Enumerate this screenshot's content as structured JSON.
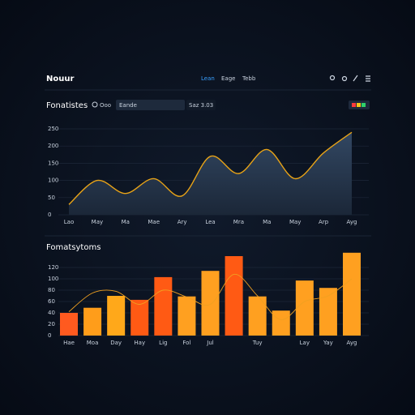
{
  "header": {
    "title": "Nouur",
    "nav": [
      "Lean",
      "Eage",
      "Tebb"
    ]
  },
  "toolbar": {
    "title": "Fonatistes",
    "search_label": "Ooo",
    "input": "Eande",
    "info": "Saz 3.03"
  },
  "chart_data": [
    {
      "type": "area",
      "color": "#e8a317",
      "categories": [
        "Lao",
        "May",
        "Ma",
        "Mae",
        "Ary",
        "Lea",
        "Mra",
        "Ma",
        "May",
        "Arp",
        "Ayg"
      ],
      "values": [
        30,
        100,
        62,
        105,
        55,
        170,
        120,
        190,
        105,
        180,
        240
      ],
      "ylim": [
        0,
        250
      ],
      "yticks": [
        0,
        50,
        100,
        150,
        200,
        250
      ],
      "grid": true
    },
    {
      "type": "bar",
      "title": "Fomatsytoms",
      "categories": [
        "Hae",
        "Moa",
        "Day",
        "Hay",
        "Lig",
        "Fol",
        "Jul",
        null,
        "Tuy",
        null,
        "Lay",
        "Yay",
        "Ayg"
      ],
      "values": [
        40,
        49,
        70,
        63,
        103,
        69,
        114,
        140,
        69,
        44,
        97,
        84,
        146
      ],
      "colors": [
        "#ff5a1f",
        "#ff9d1a",
        "#ffa81a",
        "#ff5a14",
        "#ff5a14",
        "#ffa020",
        "#ffa020",
        "#ff5a14",
        "#ffa020",
        "#ffa020",
        "#ffa020",
        "#ffa020",
        "#ffa020"
      ],
      "trend": [
        42,
        75,
        78,
        55,
        80,
        68,
        55,
        108,
        70,
        28,
        60,
        70,
        100
      ],
      "trend_color": "#f0a020",
      "ylim": [
        0,
        150
      ],
      "yticks": [
        0,
        20,
        40,
        60,
        80,
        100,
        120
      ],
      "grid": true
    }
  ]
}
